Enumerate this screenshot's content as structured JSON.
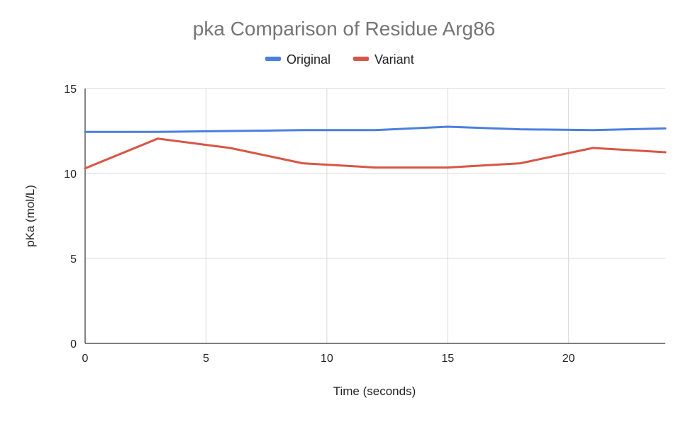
{
  "chart_data": {
    "type": "line",
    "title": "pka Comparison of Residue Arg86",
    "xlabel": "Time (seconds)",
    "ylabel": "pKa (mol/L)",
    "xlim": [
      0,
      24
    ],
    "ylim": [
      0,
      15
    ],
    "x_ticks": [
      "0",
      "5",
      "10",
      "15",
      "20"
    ],
    "y_ticks": [
      "0",
      "5",
      "10",
      "15"
    ],
    "grid": true,
    "legend_position": "top",
    "x": [
      0,
      3,
      6,
      9,
      12,
      15,
      18,
      21,
      24
    ],
    "series": [
      {
        "name": "Original",
        "color": "#4a7fe0",
        "values": [
          12.45,
          12.45,
          12.5,
          12.55,
          12.55,
          12.75,
          12.6,
          12.55,
          12.65
        ]
      },
      {
        "name": "Variant",
        "color": "#d95545",
        "values": [
          10.3,
          12.05,
          11.5,
          10.6,
          10.35,
          10.35,
          10.6,
          11.5,
          11.25
        ]
      }
    ]
  }
}
